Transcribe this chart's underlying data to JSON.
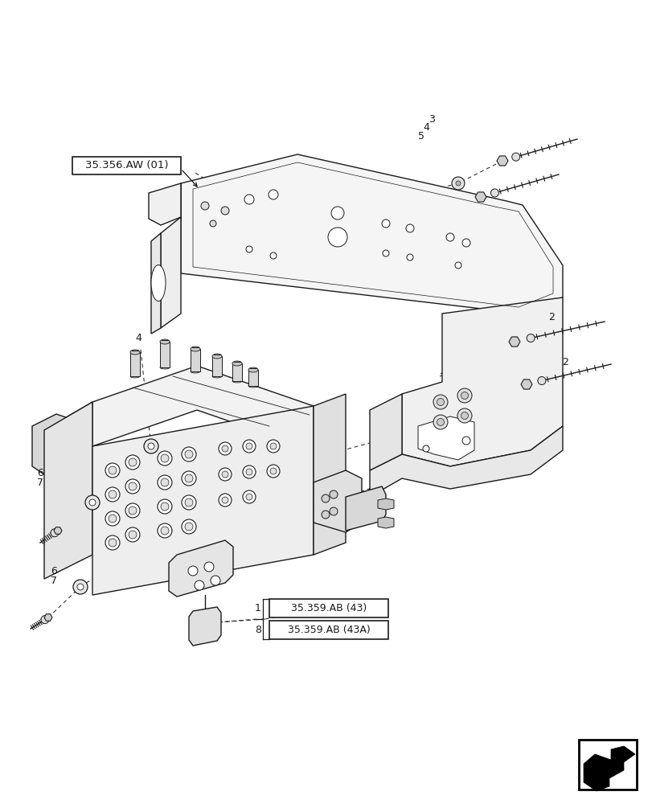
{
  "bg_color": "#ffffff",
  "line_color": "#1a1a1a",
  "fig_width": 8.12,
  "fig_height": 10.0,
  "dpi": 100,
  "labels": {
    "ref_label": "35.356.AW (01)",
    "label1_num": "1",
    "label1_ref": "35.359.AB (43)",
    "label8_num": "8",
    "label8_ref": "35.359.AB (43A)"
  },
  "callout_numbers": {
    "n2a": [
      "2",
      683,
      382
    ],
    "n2b": [
      "2",
      700,
      452
    ],
    "n3": [
      "3",
      535,
      147
    ],
    "n4a": [
      "4",
      528,
      158
    ],
    "n4b": [
      "4",
      175,
      435
    ],
    "n5": [
      "5",
      521,
      170
    ],
    "n6a": [
      "6",
      55,
      587
    ],
    "n7a": [
      "7",
      55,
      600
    ],
    "n6b": [
      "6",
      75,
      710
    ],
    "n7b": [
      "7",
      75,
      723
    ]
  }
}
